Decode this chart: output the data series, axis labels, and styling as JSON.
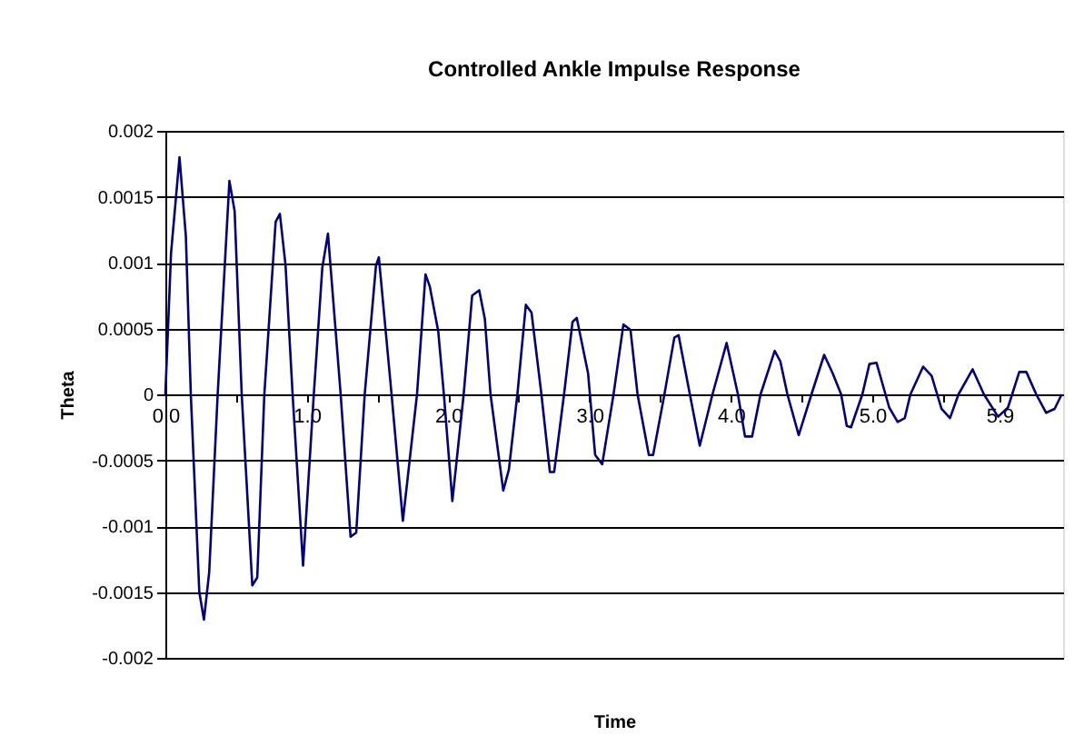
{
  "chart_data": {
    "type": "line",
    "title": "Controlled Ankle Impulse Response",
    "xlabel": "Time",
    "ylabel": "Theta",
    "x": [
      0,
      0.04,
      0.1,
      0.145,
      0.18,
      0.24,
      0.273,
      0.31,
      0.37,
      0.453,
      0.49,
      0.54,
      0.615,
      0.65,
      0.7,
      0.78,
      0.81,
      0.85,
      0.9,
      0.974,
      1.05,
      1.11,
      1.15,
      1.24,
      1.31,
      1.35,
      1.41,
      1.49,
      1.51,
      1.6,
      1.68,
      1.78,
      1.84,
      1.87,
      1.93,
      1.97,
      2.03,
      2.11,
      2.17,
      2.22,
      2.26,
      2.3,
      2.39,
      2.43,
      2.49,
      2.55,
      2.59,
      2.66,
      2.72,
      2.75,
      2.82,
      2.88,
      2.91,
      2.99,
      3.04,
      3.09,
      3.17,
      3.24,
      3.29,
      3.34,
      3.42,
      3.45,
      3.53,
      3.6,
      3.63,
      3.71,
      3.78,
      3.87,
      3.97,
      4.05,
      4.1,
      4.15,
      4.21,
      4.31,
      4.35,
      4.4,
      4.48,
      4.57,
      4.66,
      4.72,
      4.78,
      4.82,
      4.85,
      4.93,
      4.98,
      5.03,
      5.12,
      5.18,
      5.23,
      5.27,
      5.36,
      5.42,
      5.49,
      5.55,
      5.61,
      5.71,
      5.79,
      5.89,
      5.96,
      6.04,
      6.09,
      6.16,
      6.23,
      6.29,
      6.34
    ],
    "series": [
      {
        "color": "#000080",
        "values": [
          0,
          0.00107,
          0.0018,
          0.0012,
          0,
          -0.0015,
          -0.00171,
          -0.00135,
          0,
          0.00162,
          0.00139,
          0,
          -0.00145,
          -0.00139,
          0,
          0.00131,
          0.00137,
          0.00098,
          0,
          -0.0013,
          0,
          0.00096,
          0.00122,
          0,
          -0.00108,
          -0.00105,
          0,
          0.00098,
          0.00104,
          0,
          -0.00096,
          0,
          0.00091,
          0.00082,
          0.00048,
          0,
          -0.00081,
          0,
          0.00075,
          0.00079,
          0.00057,
          0,
          -0.00073,
          -0.00057,
          0,
          0.00068,
          0.00062,
          0,
          -0.00059,
          -0.00059,
          0,
          0.00055,
          0.00058,
          0.00016,
          -0.00046,
          -0.00053,
          0,
          0.00053,
          0.00049,
          0,
          -0.00046,
          -0.00046,
          0,
          0.00043,
          0.00045,
          0,
          -0.00039,
          0,
          0.00039,
          0,
          -0.00032,
          -0.00032,
          0,
          0.00033,
          0.00025,
          0,
          -0.00031,
          0,
          0.0003,
          0.00016,
          0,
          -0.00024,
          -0.00025,
          0,
          0.00023,
          0.00024,
          -0.0001,
          -0.00021,
          -0.00018,
          0,
          0.00021,
          0.00014,
          -0.00011,
          -0.00018,
          0,
          0.00019,
          0,
          -0.00017,
          -0.0001,
          0.00017,
          0.00017,
          0,
          -0.00014,
          -0.00011,
          0
        ]
      }
    ],
    "xlim": [
      0,
      6.35
    ],
    "xticks": [
      {
        "value": 0,
        "label": "0.0"
      },
      {
        "value": 0.5,
        "label": null
      },
      {
        "value": 1,
        "label": "1.0"
      },
      {
        "value": 1.5,
        "label": null
      },
      {
        "value": 2,
        "label": "2.0"
      },
      {
        "value": 2.5,
        "label": null
      },
      {
        "value": 3,
        "label": "3.0"
      },
      {
        "value": 3.5,
        "label": null
      },
      {
        "value": 4,
        "label": "4.0"
      },
      {
        "value": 4.5,
        "label": null
      },
      {
        "value": 5,
        "label": "5.0"
      },
      {
        "value": 5.5,
        "label": null
      },
      {
        "value": 5.9,
        "label": "5.9"
      }
    ],
    "ylim": [
      -0.002,
      0.002
    ],
    "yticks": [
      -0.002,
      -0.0015,
      -0.001,
      -0.0005,
      0,
      0.0005,
      0.001,
      0.0015,
      0.002
    ],
    "grid": "y",
    "legend": false,
    "marker": "none",
    "line_style": "solid"
  }
}
